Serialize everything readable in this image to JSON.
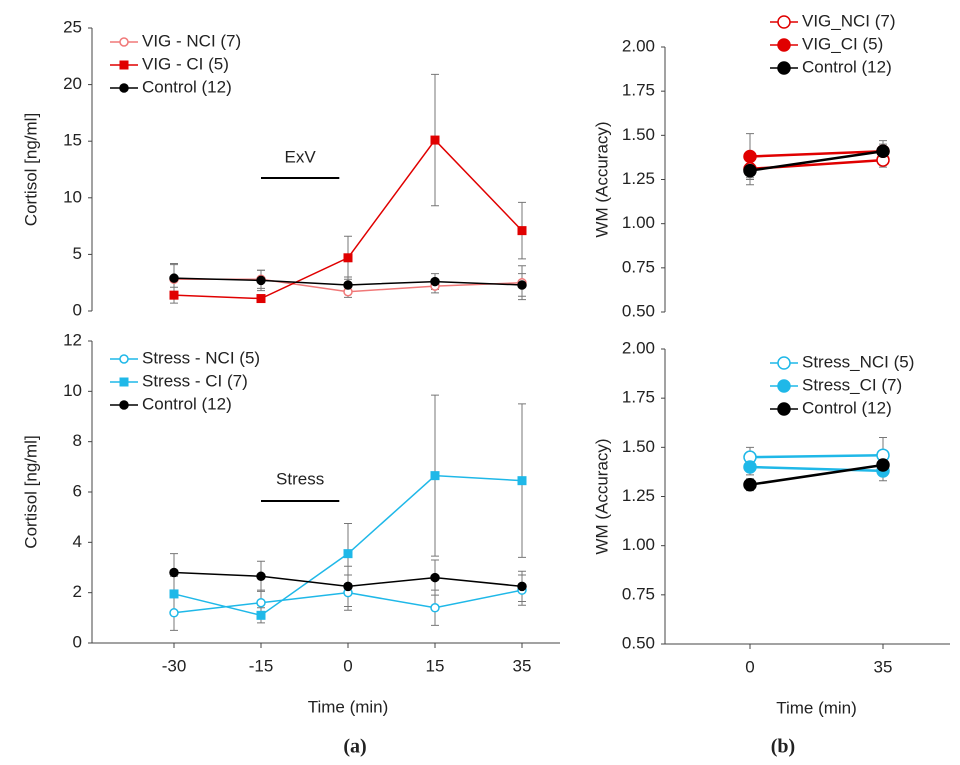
{
  "chart_data": [
    {
      "type": "line",
      "ylabel": "Cortisol [ng/ml]",
      "annotation": "ExV",
      "categories": [
        null,
        null,
        null,
        null,
        null
      ],
      "ylim": [
        0,
        25
      ],
      "yticks": [
        0,
        5,
        10,
        15,
        20,
        25
      ],
      "series": [
        {
          "name": "VIG - NCI (7)",
          "color": "#f07878",
          "marker": "open-circle",
          "values": [
            2.8,
            2.8,
            1.7,
            2.2,
            2.5
          ],
          "errors": [
            1.3,
            0.8,
            0.5,
            0.6,
            1.5
          ]
        },
        {
          "name": "VIG - CI (5)",
          "color": "#e00000",
          "marker": "square",
          "values": [
            1.4,
            1.1,
            4.7,
            15.1,
            7.1
          ],
          "errors": [
            0.7,
            0.3,
            1.9,
            5.8,
            2.5
          ]
        },
        {
          "name": "Control (12)",
          "color": "#000000",
          "marker": "circle",
          "values": [
            2.9,
            2.7,
            2.3,
            2.6,
            2.3
          ],
          "errors": [
            1.3,
            0.9,
            0.7,
            0.7,
            1.0
          ]
        }
      ]
    },
    {
      "type": "line",
      "ylabel": "WM (Accuracy)",
      "categories": [
        null,
        null
      ],
      "ylim": [
        0.5,
        2.0
      ],
      "yticks": [
        {
          "value": 0.5,
          "label": "0.50"
        },
        {
          "value": 0.75,
          "label": "0.75"
        },
        {
          "value": 1.0,
          "label": "1.00"
        },
        {
          "value": 1.25,
          "label": "1.25"
        },
        {
          "value": 1.5,
          "label": "1.50"
        },
        {
          "value": 1.75,
          "label": "1.75"
        },
        {
          "value": 2.0,
          "label": "2.00"
        }
      ],
      "series": [
        {
          "name": "VIG_NCI (7)",
          "color": "#e00000",
          "marker": "open-circle",
          "values": [
            1.31,
            1.36
          ],
          "errors": [
            0.09,
            0.04
          ]
        },
        {
          "name": "VIG_CI (5)",
          "color": "#e00000",
          "marker": "circle",
          "values": [
            1.38,
            1.41
          ],
          "errors": [
            0.13,
            0.06
          ]
        },
        {
          "name": "Control (12)",
          "color": "#000000",
          "marker": "circle",
          "values": [
            1.3,
            1.41
          ],
          "errors": [
            0.04,
            0.04
          ]
        }
      ]
    },
    {
      "type": "line",
      "ylabel": "Cortisol [ng/ml]",
      "xlabel": "Time (min)",
      "annotation": "Stress",
      "categories": [
        "-30",
        "-15",
        "0",
        "15",
        "35"
      ],
      "ylim": [
        0,
        12
      ],
      "yticks": [
        0,
        2,
        4,
        6,
        8,
        10,
        12
      ],
      "series": [
        {
          "name": "Stress - NCI (5)",
          "color": "#1fb8e8",
          "marker": "open-circle",
          "values": [
            1.2,
            1.6,
            2.0,
            1.4,
            2.1
          ],
          "errors": [
            0.7,
            0.5,
            0.7,
            0.7,
            0.6
          ]
        },
        {
          "name": "Stress - CI (7)",
          "color": "#1fb8e8",
          "marker": "square",
          "values": [
            1.95,
            1.1,
            3.55,
            6.65,
            6.45
          ],
          "errors": [
            0.7,
            0.3,
            1.2,
            3.2,
            3.05
          ]
        },
        {
          "name": "Control (12)",
          "color": "#000000",
          "marker": "circle",
          "values": [
            2.8,
            2.65,
            2.25,
            2.6,
            2.25
          ],
          "errors": [
            0.75,
            0.6,
            0.8,
            0.7,
            0.6
          ]
        }
      ]
    },
    {
      "type": "line",
      "ylabel": "WM (Accuracy)",
      "xlabel": "Time (min)",
      "categories": [
        "0",
        "35"
      ],
      "ylim": [
        0.5,
        2.0
      ],
      "yticks": [
        {
          "value": 0.5,
          "label": "0.50"
        },
        {
          "value": 0.75,
          "label": "0.75"
        },
        {
          "value": 1.0,
          "label": "1.00"
        },
        {
          "value": 1.25,
          "label": "1.25"
        },
        {
          "value": 1.5,
          "label": "1.50"
        },
        {
          "value": 1.75,
          "label": "1.75"
        },
        {
          "value": 2.0,
          "label": "2.00"
        }
      ],
      "series": [
        {
          "name": "Stress_NCI (5)",
          "color": "#1fb8e8",
          "marker": "open-circle",
          "values": [
            1.45,
            1.46
          ],
          "errors": [
            0.05,
            0.09
          ]
        },
        {
          "name": "Stress_CI (7)",
          "color": "#1fb8e8",
          "marker": "circle",
          "values": [
            1.4,
            1.38
          ],
          "errors": [
            0.04,
            0.05
          ]
        },
        {
          "name": "Control (12)",
          "color": "#000000",
          "marker": "circle",
          "values": [
            1.31,
            1.41
          ],
          "errors": [
            0.03,
            0.04
          ]
        }
      ]
    }
  ],
  "panel_labels": [
    "(a)",
    "(b)"
  ]
}
